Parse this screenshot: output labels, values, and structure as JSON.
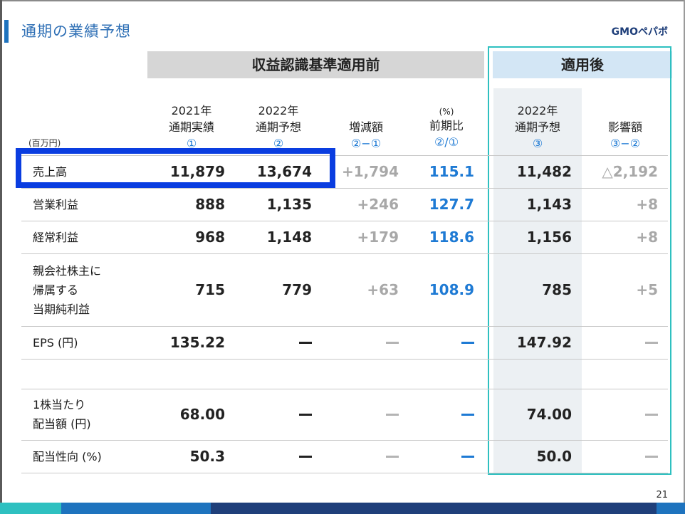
{
  "title": "通期の業績予想",
  "logo": "GMOペパボ",
  "group_before": "収益認識基準適用前",
  "group_after": "適用後",
  "unit": "(百万円)",
  "columns": [
    {
      "l1": "2021年",
      "l2": "通期実績",
      "sub": "①"
    },
    {
      "l1": "2022年",
      "l2": "通期予想",
      "sub": "②"
    },
    {
      "l1": "",
      "l2": "増減額",
      "sub": "②−①"
    },
    {
      "pct": "(%)",
      "l2": "前期比",
      "sub": "②/①"
    },
    {
      "l1": "2022年",
      "l2": "通期予想",
      "sub": "③"
    },
    {
      "l1": "",
      "l2": "影響額",
      "sub": "③−②"
    }
  ],
  "rows": [
    {
      "label": [
        "売上高"
      ],
      "v": [
        "11,879",
        "13,674",
        "+1,794",
        "115.1",
        "11,482",
        "△2,192"
      ]
    },
    {
      "label": [
        "営業利益"
      ],
      "v": [
        "888",
        "1,135",
        "+246",
        "127.7",
        "1,143",
        "+8"
      ]
    },
    {
      "label": [
        "経常利益"
      ],
      "v": [
        "968",
        "1,148",
        "+179",
        "118.6",
        "1,156",
        "+8"
      ]
    },
    {
      "label": [
        "親会社株主に",
        "帰属する",
        "当期純利益"
      ],
      "v": [
        "715",
        "779",
        "+63",
        "108.9",
        "785",
        "+5"
      ]
    },
    {
      "label": [
        "EPS (円)"
      ],
      "v": [
        "135.22",
        "",
        "",
        "",
        "147.92",
        ""
      ]
    },
    {
      "label": [],
      "v": [
        "",
        "",
        "",
        "",
        "",
        ""
      ]
    },
    {
      "label": [
        "1株当たり",
        "配当額 (円)"
      ],
      "v": [
        "68.00",
        "",
        "",
        "",
        "74.00",
        ""
      ]
    },
    {
      "label": [
        "配当性向 (%)"
      ],
      "v": [
        "50.3",
        "",
        "",
        "",
        "50.0",
        ""
      ]
    }
  ],
  "page_number": "21",
  "colors": {
    "accent": "#1e73be",
    "teal": "#2ec0c0",
    "highlight": "#0a3de0",
    "blue_value": "#1e7ad4"
  }
}
